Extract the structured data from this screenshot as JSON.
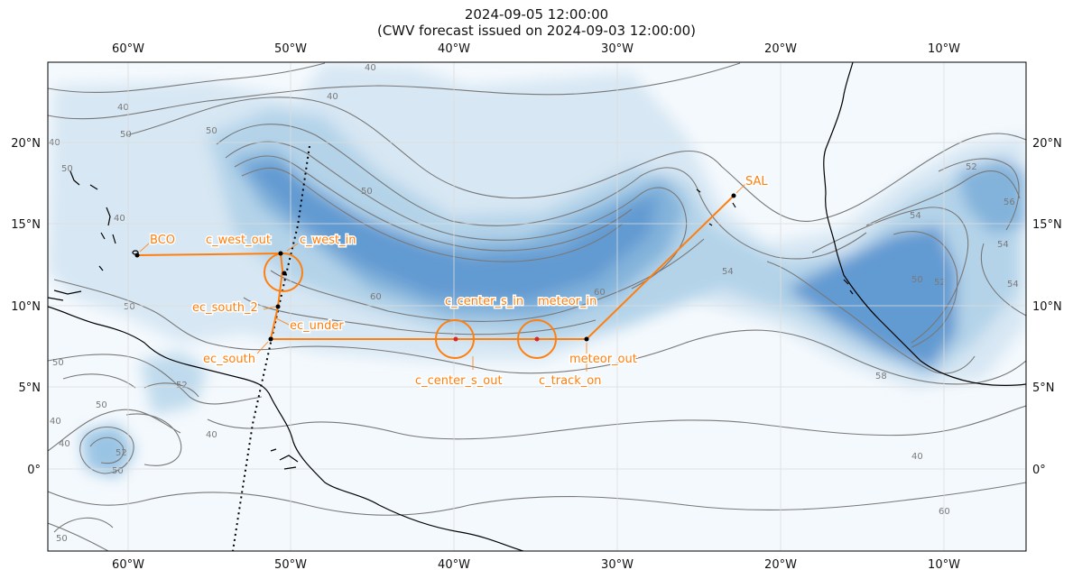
{
  "title": {
    "line1": "2024-09-05 12:00:00",
    "line2": "(CWV forecast issued on 2024-09-03 12:00:00)"
  },
  "map": {
    "lon_ticks": [
      "60°W",
      "50°W",
      "40°W",
      "30°W",
      "20°W",
      "10°W"
    ],
    "lat_ticks": [
      "20°N",
      "15°N",
      "10°N",
      "5°N",
      "0°"
    ],
    "colors": {
      "moist_core": "#3e7fc2",
      "moist_mid": "#9fc7e3",
      "background": "#f4f9fd",
      "flight_track": "#ff7f0e",
      "contour": "#777777",
      "coast": "#000000"
    }
  },
  "contour_labels": [
    {
      "text": "40"
    },
    {
      "text": "40"
    },
    {
      "text": "40"
    },
    {
      "text": "40"
    },
    {
      "text": "50"
    },
    {
      "text": "50"
    },
    {
      "text": "40"
    },
    {
      "text": "50"
    },
    {
      "text": "50"
    },
    {
      "text": "50"
    },
    {
      "text": "54"
    },
    {
      "text": "50"
    },
    {
      "text": "52"
    },
    {
      "text": "54"
    },
    {
      "text": "54"
    },
    {
      "text": "56"
    },
    {
      "text": "54"
    },
    {
      "text": "52"
    },
    {
      "text": "50"
    },
    {
      "text": "40"
    },
    {
      "text": "40"
    },
    {
      "text": "40"
    },
    {
      "text": "50"
    },
    {
      "text": "52"
    },
    {
      "text": "50"
    },
    {
      "text": "52"
    },
    {
      "text": "50"
    },
    {
      "text": "40"
    },
    {
      "text": "60"
    },
    {
      "text": "60"
    },
    {
      "text": "58"
    },
    {
      "text": "60"
    }
  ],
  "waypoints": [
    {
      "text": "BCO"
    },
    {
      "text": "c_west_out"
    },
    {
      "text": "c_west_in"
    },
    {
      "text": "ec_south_2"
    },
    {
      "text": "ec_under"
    },
    {
      "text": "ec_south"
    },
    {
      "text": "c_center_s_in"
    },
    {
      "text": "meteor_in"
    },
    {
      "text": "c_center_s_out"
    },
    {
      "text": "meteor_out"
    },
    {
      "text": "c_track_on"
    },
    {
      "text": "SAL"
    }
  ]
}
